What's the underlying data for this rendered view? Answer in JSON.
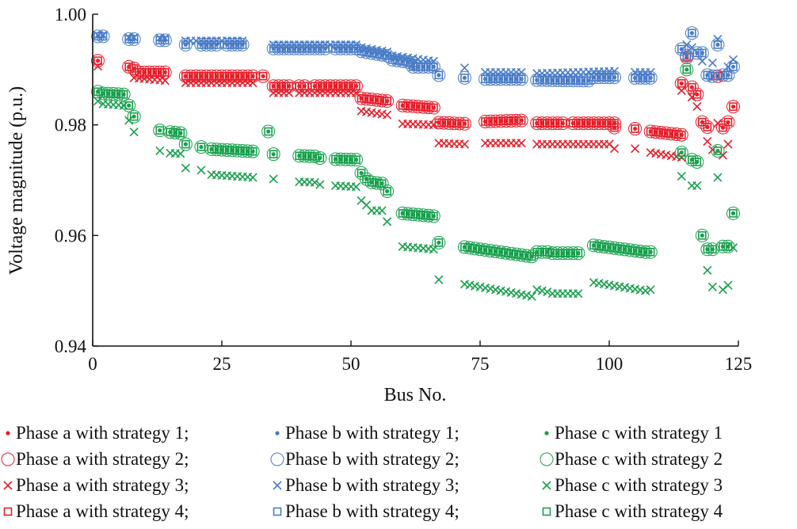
{
  "chart_data": {
    "type": "scatter",
    "title": "",
    "xlabel": "Bus No.",
    "ylabel": "Voltage magnitude (p.u.)",
    "xlim": [
      0,
      125
    ],
    "ylim": [
      0.94,
      1.0
    ],
    "xticks": [
      "0",
      "25",
      "50",
      "75",
      "100",
      "125"
    ],
    "yticks": [
      "0.94",
      "0.96",
      "0.98",
      "1.00"
    ],
    "grid": false,
    "legend_placement": "bottom",
    "colors": {
      "a": "#e61e2a",
      "b": "#4a7cc6",
      "c": "#17a04c"
    },
    "note_segments": "each segment is [bus_start, bus_end, value_start, value_end]; strategies 1, 2 and 4 coincide",
    "phases": {
      "a": {
        "s124": [
          [
            1,
            1,
            0.9916,
            0.9916
          ],
          [
            7,
            8,
            0.9905,
            0.9902
          ],
          [
            9,
            14,
            0.9895,
            0.9895
          ],
          [
            18,
            31,
            0.9888,
            0.9888
          ],
          [
            33,
            33,
            0.9888,
            0.9888
          ],
          [
            35,
            38,
            0.987,
            0.987
          ],
          [
            40,
            41,
            0.987,
            0.987
          ],
          [
            43,
            51,
            0.987,
            0.987
          ],
          [
            52,
            57,
            0.9848,
            0.9843
          ],
          [
            60,
            66,
            0.9835,
            0.9831
          ],
          [
            67,
            72,
            0.9804,
            0.9802
          ],
          [
            76,
            83,
            0.9806,
            0.9808
          ],
          [
            86,
            88,
            0.9803,
            0.9803
          ],
          [
            89,
            91,
            0.9803,
            0.9803
          ],
          [
            93,
            101,
            0.9803,
            0.9803
          ],
          [
            101,
            101,
            0.9795,
            0.9795
          ],
          [
            105,
            105,
            0.9793,
            0.9793
          ],
          [
            108,
            114,
            0.9788,
            0.9782
          ],
          [
            114,
            114,
            0.9875,
            0.9875
          ],
          [
            115,
            115,
            0.9922,
            0.9922
          ],
          [
            116,
            116,
            0.9868,
            0.9868
          ],
          [
            117,
            117,
            0.9855,
            0.9855
          ],
          [
            118,
            118,
            0.9805,
            0.9805
          ],
          [
            119,
            119,
            0.9796,
            0.9796
          ],
          [
            121,
            121,
            0.9888,
            0.9888
          ],
          [
            122,
            122,
            0.9795,
            0.9795
          ],
          [
            123,
            123,
            0.9805,
            0.9805
          ],
          [
            124,
            124,
            0.9833,
            0.9833
          ]
        ],
        "s3": [
          [
            1,
            1,
            0.9906,
            0.9906
          ],
          [
            8,
            14,
            0.9885,
            0.988
          ],
          [
            18,
            31,
            0.9876,
            0.9876
          ],
          [
            35,
            38,
            0.9858,
            0.9858
          ],
          [
            40,
            51,
            0.9858,
            0.9858
          ],
          [
            52,
            57,
            0.9825,
            0.9818
          ],
          [
            60,
            66,
            0.9802,
            0.98
          ],
          [
            67,
            72,
            0.9767,
            0.9765
          ],
          [
            76,
            83,
            0.9767,
            0.9767
          ],
          [
            86,
            100,
            0.9765,
            0.9765
          ],
          [
            101,
            101,
            0.9757,
            0.9757
          ],
          [
            105,
            105,
            0.9757,
            0.9757
          ],
          [
            108,
            114,
            0.975,
            0.9741
          ],
          [
            114,
            114,
            0.9862,
            0.9862
          ],
          [
            116,
            116,
            0.985,
            0.985
          ],
          [
            117,
            117,
            0.9833,
            0.9833
          ],
          [
            119,
            119,
            0.977,
            0.977
          ],
          [
            120,
            120,
            0.9755,
            0.9755
          ],
          [
            121,
            121,
            0.9803,
            0.9803
          ],
          [
            122,
            122,
            0.9745,
            0.9745
          ],
          [
            123,
            123,
            0.9765,
            0.9765
          ]
        ]
      },
      "b": {
        "s124": [
          [
            1,
            2,
            0.996,
            0.996
          ],
          [
            7,
            8,
            0.9955,
            0.9955
          ],
          [
            13,
            14,
            0.9953,
            0.9953
          ],
          [
            18,
            18,
            0.9945,
            0.9945
          ],
          [
            21,
            24,
            0.9945,
            0.9945
          ],
          [
            26,
            29,
            0.9945,
            0.9945
          ],
          [
            35,
            45,
            0.9938,
            0.9938
          ],
          [
            47,
            51,
            0.9938,
            0.9938
          ],
          [
            52,
            57,
            0.9933,
            0.9925
          ],
          [
            58,
            62,
            0.9918,
            0.9912
          ],
          [
            62,
            66,
            0.9905,
            0.9905
          ],
          [
            67,
            67,
            0.989,
            0.989
          ],
          [
            72,
            72,
            0.9885,
            0.9885
          ],
          [
            76,
            83,
            0.9883,
            0.9883
          ],
          [
            86,
            96,
            0.9881,
            0.988
          ],
          [
            97,
            101,
            0.9886,
            0.9886
          ],
          [
            105,
            108,
            0.9885,
            0.9885
          ],
          [
            114,
            114,
            0.9937,
            0.9937
          ],
          [
            115,
            115,
            0.9925,
            0.9925
          ],
          [
            116,
            116,
            0.9966,
            0.9966
          ],
          [
            117,
            118,
            0.993,
            0.993
          ],
          [
            119,
            119,
            0.989,
            0.989
          ],
          [
            120,
            120,
            0.9888,
            0.9888
          ],
          [
            121,
            121,
            0.9945,
            0.9945
          ],
          [
            122,
            123,
            0.989,
            0.989
          ],
          [
            124,
            124,
            0.9905,
            0.9905
          ]
        ],
        "s3": [
          [
            1,
            2,
            0.9962,
            0.9962
          ],
          [
            7,
            8,
            0.9958,
            0.9958
          ],
          [
            13,
            14,
            0.9957,
            0.9957
          ],
          [
            18,
            29,
            0.9952,
            0.9952
          ],
          [
            35,
            51,
            0.9945,
            0.9945
          ],
          [
            52,
            57,
            0.994,
            0.9932
          ],
          [
            58,
            66,
            0.9925,
            0.9915
          ],
          [
            72,
            72,
            0.9903,
            0.9903
          ],
          [
            76,
            83,
            0.9895,
            0.9895
          ],
          [
            86,
            101,
            0.9893,
            0.9897
          ],
          [
            105,
            108,
            0.9895,
            0.9895
          ],
          [
            115,
            116,
            0.9945,
            0.994
          ],
          [
            118,
            118,
            0.9915,
            0.9915
          ],
          [
            120,
            120,
            0.9912,
            0.9912
          ],
          [
            121,
            121,
            0.9955,
            0.9955
          ],
          [
            123,
            124,
            0.9905,
            0.9918
          ]
        ]
      },
      "c": {
        "s124": [
          [
            1,
            1,
            0.986,
            0.986
          ],
          [
            2,
            6,
            0.9857,
            0.9855
          ],
          [
            7,
            7,
            0.9835,
            0.9835
          ],
          [
            8,
            8,
            0.9815,
            0.9815
          ],
          [
            13,
            13,
            0.979,
            0.979
          ],
          [
            15,
            17,
            0.9787,
            0.9785
          ],
          [
            18,
            18,
            0.9765,
            0.9765
          ],
          [
            21,
            21,
            0.976,
            0.976
          ],
          [
            23,
            31,
            0.9756,
            0.9752
          ],
          [
            34,
            34,
            0.9788,
            0.9788
          ],
          [
            35,
            35,
            0.9747,
            0.9747
          ],
          [
            40,
            43,
            0.9744,
            0.9743
          ],
          [
            44,
            44,
            0.974,
            0.974
          ],
          [
            47,
            51,
            0.9738,
            0.9737
          ],
          [
            52,
            52,
            0.9713,
            0.9713
          ],
          [
            53,
            53,
            0.9702,
            0.9702
          ],
          [
            54,
            56,
            0.9696,
            0.9694
          ],
          [
            57,
            57,
            0.968,
            0.968
          ],
          [
            60,
            66,
            0.964,
            0.9635
          ],
          [
            67,
            67,
            0.9587,
            0.9587
          ],
          [
            72,
            85,
            0.9579,
            0.9562
          ],
          [
            86,
            88,
            0.957,
            0.957
          ],
          [
            89,
            94,
            0.9568,
            0.9568
          ],
          [
            97,
            107,
            0.9582,
            0.957
          ],
          [
            108,
            108,
            0.957,
            0.957
          ],
          [
            114,
            114,
            0.975,
            0.975
          ],
          [
            115,
            115,
            0.99,
            0.99
          ],
          [
            116,
            117,
            0.9737,
            0.9733
          ],
          [
            118,
            118,
            0.96,
            0.96
          ],
          [
            119,
            120,
            0.9575,
            0.9575
          ],
          [
            121,
            121,
            0.9753,
            0.9753
          ],
          [
            122,
            123,
            0.958,
            0.958
          ],
          [
            124,
            124,
            0.964,
            0.964
          ]
        ],
        "s3": [
          [
            1,
            1,
            0.9843,
            0.9843
          ],
          [
            2,
            6,
            0.9838,
            0.9835
          ],
          [
            7,
            7,
            0.9808,
            0.9808
          ],
          [
            8,
            8,
            0.9787,
            0.9787
          ],
          [
            13,
            13,
            0.9753,
            0.9753
          ],
          [
            15,
            17,
            0.9749,
            0.9748
          ],
          [
            18,
            18,
            0.9722,
            0.9722
          ],
          [
            21,
            21,
            0.9718,
            0.9718
          ],
          [
            23,
            31,
            0.971,
            0.9705
          ],
          [
            35,
            35,
            0.9702,
            0.9702
          ],
          [
            40,
            43,
            0.9697,
            0.9696
          ],
          [
            44,
            44,
            0.9692,
            0.9692
          ],
          [
            47,
            51,
            0.969,
            0.9688
          ],
          [
            52,
            53,
            0.9663,
            0.9655
          ],
          [
            54,
            56,
            0.9645,
            0.9645
          ],
          [
            57,
            57,
            0.9625,
            0.9625
          ],
          [
            60,
            66,
            0.958,
            0.9575
          ],
          [
            67,
            67,
            0.952,
            0.952
          ],
          [
            72,
            85,
            0.9512,
            0.949
          ],
          [
            86,
            88,
            0.9502,
            0.9498
          ],
          [
            89,
            94,
            0.9495,
            0.9495
          ],
          [
            97,
            107,
            0.9515,
            0.95
          ],
          [
            108,
            108,
            0.9502,
            0.9502
          ],
          [
            114,
            114,
            0.9707,
            0.9707
          ],
          [
            116,
            117,
            0.969,
            0.969
          ],
          [
            119,
            119,
            0.9537,
            0.9537
          ],
          [
            120,
            120,
            0.9507,
            0.9507
          ],
          [
            121,
            121,
            0.9705,
            0.9705
          ],
          [
            122,
            122,
            0.9502,
            0.9502
          ],
          [
            123,
            123,
            0.951,
            0.951
          ],
          [
            124,
            124,
            0.9578,
            0.9578
          ]
        ]
      }
    },
    "legend": [
      [
        {
          "phase": "a",
          "marker": "dot",
          "label": "Phase a with strategy 1;"
        },
        {
          "phase": "b",
          "marker": "dot",
          "label": "Phase b with strategy 1;"
        },
        {
          "phase": "c",
          "marker": "dot",
          "label": "Phase c with strategy 1"
        }
      ],
      [
        {
          "phase": "a",
          "marker": "circle",
          "label": "Phase a with strategy 2;"
        },
        {
          "phase": "b",
          "marker": "circle",
          "label": "Phase b with strategy 2;"
        },
        {
          "phase": "c",
          "marker": "circle",
          "label": "Phase c with strategy 2"
        }
      ],
      [
        {
          "phase": "a",
          "marker": "cross",
          "label": "Phase a with strategy 3;"
        },
        {
          "phase": "b",
          "marker": "cross",
          "label": "Phase b with strategy 3;"
        },
        {
          "phase": "c",
          "marker": "cross",
          "label": "Phase c with strategy 3"
        }
      ],
      [
        {
          "phase": "a",
          "marker": "square",
          "label": "Phase a with strategy 4;"
        },
        {
          "phase": "b",
          "marker": "square",
          "label": "Phase b with strategy 4;"
        },
        {
          "phase": "c",
          "marker": "square",
          "label": "Phase c with strategy 4"
        }
      ]
    ]
  }
}
